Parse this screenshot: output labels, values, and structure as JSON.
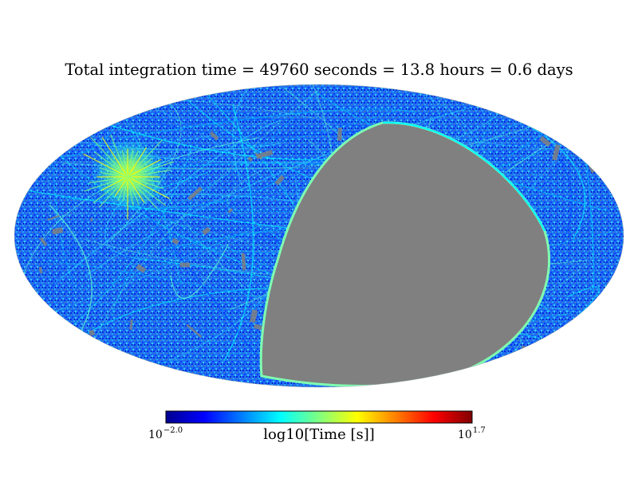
{
  "chart_data": {
    "type": "heatmap",
    "projection": "mollweide",
    "title": "Total integration time = 49760 seconds = 13.8 hours = 0.6 days",
    "colorbar": {
      "label": "log10[Time [s]]",
      "min_base": "10",
      "min_exp": "−2.0",
      "max_base": "10",
      "max_exp": "1.7",
      "range_log10": [
        -2.0,
        1.7
      ],
      "colormap": "jet",
      "orientation": "horizontal",
      "placement": "bottom"
    },
    "unobserved_color": "#808080",
    "stops": [
      "#00008f",
      "#0000ff",
      "#0080ff",
      "#00ffff",
      "#80ff80",
      "#ffff00",
      "#ff8000",
      "#ff0000",
      "#800000"
    ]
  }
}
